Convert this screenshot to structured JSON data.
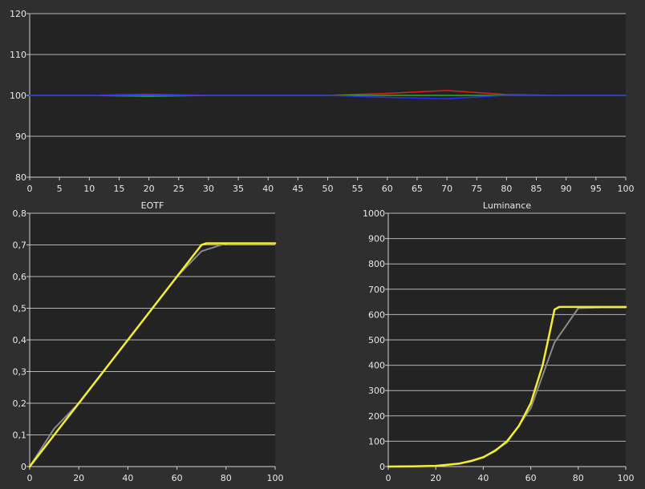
{
  "chart_data": [
    {
      "id": "rgb-balance",
      "type": "line",
      "title": "",
      "xlabel": "",
      "ylabel": "",
      "xlim": [
        0,
        100
      ],
      "ylim": [
        80,
        120
      ],
      "x_ticks": [
        0,
        5,
        10,
        15,
        20,
        25,
        30,
        35,
        40,
        45,
        50,
        55,
        60,
        65,
        70,
        75,
        80,
        85,
        90,
        95,
        100
      ],
      "y_ticks": [
        80,
        90,
        100,
        110,
        120
      ],
      "y_tick_labels": [
        "80",
        "90",
        "100",
        "110",
        "120"
      ],
      "grid": true,
      "legend": "none",
      "series": [
        {
          "color": "#e0201c",
          "x": [
            0,
            10,
            20,
            30,
            40,
            50,
            60,
            70,
            80,
            90,
            100
          ],
          "values": [
            100,
            100,
            100.3,
            100,
            100,
            100,
            100.5,
            101.2,
            100.2,
            100,
            100
          ]
        },
        {
          "color": "#1db81d",
          "x": [
            0,
            10,
            20,
            30,
            40,
            50,
            60,
            70,
            80,
            90,
            100
          ],
          "values": [
            100,
            100,
            99.8,
            100,
            100,
            100,
            100,
            100,
            100,
            100,
            100
          ]
        },
        {
          "color": "#2a2cff",
          "x": [
            0,
            10,
            20,
            30,
            40,
            50,
            60,
            70,
            80,
            90,
            100
          ],
          "values": [
            100,
            100,
            100.1,
            100,
            100,
            100,
            99.5,
            99.2,
            100,
            100,
            100
          ]
        }
      ]
    },
    {
      "id": "eotf",
      "type": "line",
      "title": "EOTF",
      "xlabel": "",
      "ylabel": "",
      "xlim": [
        0,
        100
      ],
      "ylim": [
        0,
        0.8
      ],
      "x_ticks": [
        0,
        20,
        40,
        60,
        80,
        100
      ],
      "y_ticks": [
        0,
        0.1,
        0.2,
        0.3,
        0.4,
        0.5,
        0.6,
        0.7,
        0.8
      ],
      "y_tick_labels": [
        "0",
        "0,1",
        "0,2",
        "0,3",
        "0,4",
        "0,5",
        "0,6",
        "0,7",
        "0,8"
      ],
      "grid": true,
      "legend": "none",
      "series": [
        {
          "color": "#8a8a8a",
          "x": [
            0,
            10,
            20,
            30,
            40,
            50,
            60,
            70,
            80,
            90,
            100
          ],
          "values": [
            0,
            0.12,
            0.2,
            0.3,
            0.4,
            0.5,
            0.6,
            0.68,
            0.705,
            0.705,
            0.705
          ]
        },
        {
          "color": "#f4f030",
          "x": [
            0,
            5,
            10,
            20,
            30,
            40,
            50,
            60,
            70,
            72,
            80,
            90,
            100
          ],
          "values": [
            0,
            0.05,
            0.1,
            0.2,
            0.3,
            0.4,
            0.5,
            0.6,
            0.7,
            0.705,
            0.705,
            0.705,
            0.705
          ]
        }
      ]
    },
    {
      "id": "luminance",
      "type": "line",
      "title": "Luminance",
      "xlabel": "",
      "ylabel": "",
      "xlim": [
        0,
        100
      ],
      "ylim": [
        0,
        1000
      ],
      "x_ticks": [
        0,
        20,
        40,
        60,
        80,
        100
      ],
      "y_ticks": [
        0,
        100,
        200,
        300,
        400,
        500,
        600,
        700,
        800,
        900,
        1000
      ],
      "y_tick_labels": [
        "0",
        "100",
        "200",
        "300",
        "400",
        "500",
        "600",
        "700",
        "800",
        "900",
        "1000"
      ],
      "grid": true,
      "legend": "none",
      "series": [
        {
          "color": "#8a8a8a",
          "x": [
            0,
            10,
            20,
            30,
            40,
            50,
            60,
            70,
            80,
            90,
            100
          ],
          "values": [
            0,
            1,
            3,
            12,
            35,
            95,
            230,
            490,
            625,
            628,
            628
          ]
        },
        {
          "color": "#f4f030",
          "x": [
            0,
            10,
            20,
            25,
            30,
            35,
            40,
            45,
            50,
            55,
            60,
            65,
            68,
            70,
            72,
            80,
            90,
            100
          ],
          "values": [
            0,
            1,
            3,
            7,
            12,
            22,
            37,
            62,
            100,
            160,
            250,
            400,
            530,
            620,
            630,
            630,
            630,
            630
          ]
        }
      ]
    }
  ]
}
